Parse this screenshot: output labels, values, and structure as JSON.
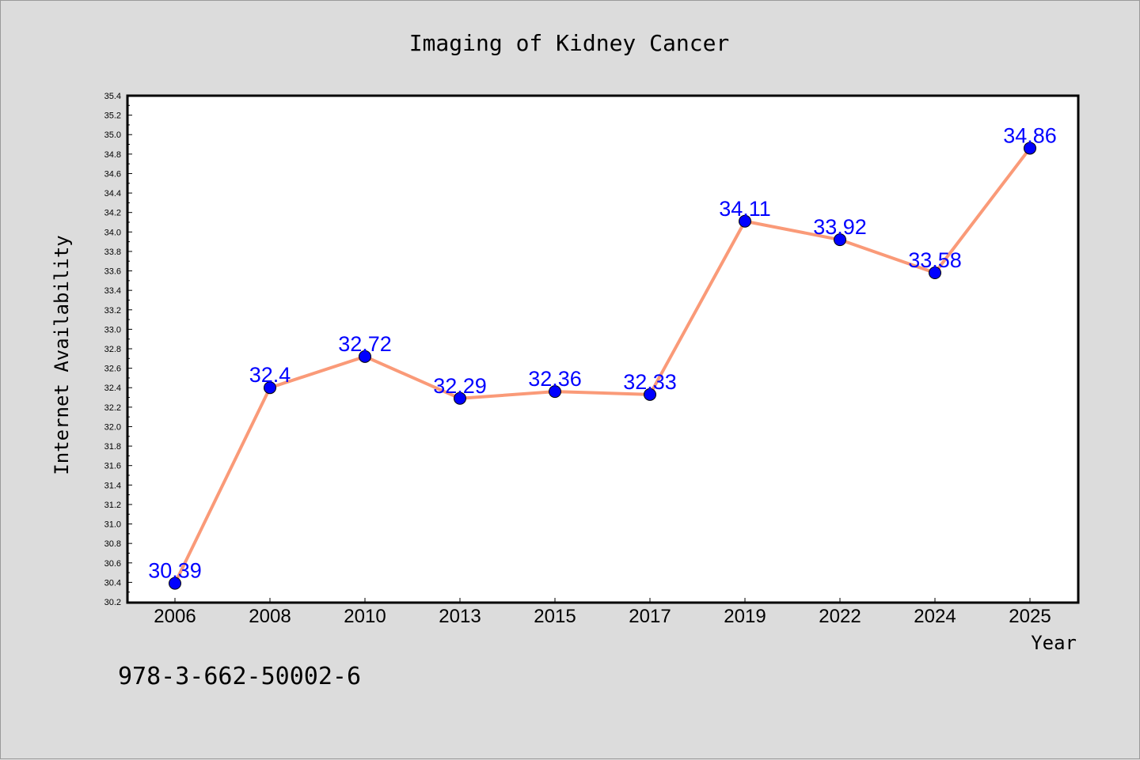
{
  "footer_text": "978-3-662-50002-6",
  "chart_data": {
    "type": "line",
    "title": "Imaging of Kidney Cancer",
    "xlabel": "Year",
    "ylabel": "Internet Availability",
    "categories": [
      "2006",
      "2008",
      "2010",
      "2013",
      "2015",
      "2017",
      "2019",
      "2022",
      "2024",
      "2025"
    ],
    "values": [
      30.39,
      32.4,
      32.72,
      32.29,
      32.36,
      32.33,
      34.11,
      33.92,
      33.58,
      34.86
    ],
    "data_labels": [
      "30.39",
      "32.4",
      "32.72",
      "32.29",
      "32.36",
      "32.33",
      "34.11",
      "33.92",
      "33.58",
      "34.86"
    ],
    "ylim": [
      30.2,
      35.4
    ],
    "yticks": [
      "30.2",
      "30.4",
      "30.6",
      "30.8",
      "31.0",
      "31.2",
      "31.4",
      "31.6",
      "31.8",
      "32.0",
      "32.2",
      "32.4",
      "32.6",
      "32.8",
      "33.0",
      "33.2",
      "33.4",
      "33.6",
      "33.8",
      "34.0",
      "34.2",
      "34.4",
      "34.6",
      "34.8",
      "35.0",
      "35.2",
      "35.4"
    ],
    "grid": false,
    "legend": "none",
    "colors": {
      "line": "#fa9a78",
      "marker": "#0000ff",
      "data_label": "#0000ff",
      "plot_background": "#ffffff",
      "figure_background": "#dcdcdc"
    }
  }
}
